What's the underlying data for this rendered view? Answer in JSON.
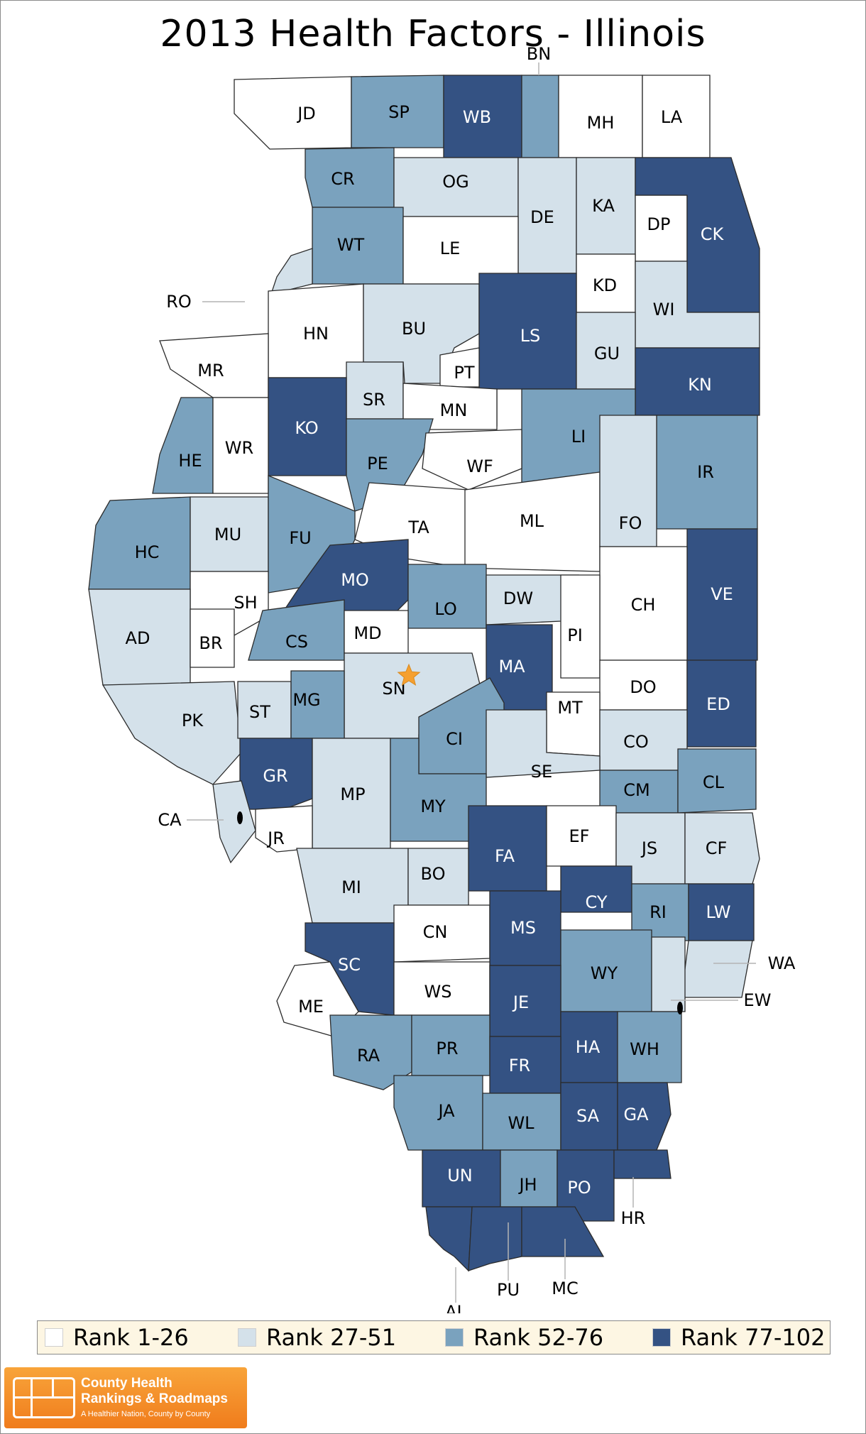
{
  "title": "2013 Health Factors - Illinois",
  "colors": {
    "Rank 1-26": "#ffffff",
    "Rank 27-51": "#d4e1ea",
    "Rank 52-76": "#7aa2be",
    "Rank 77-102": "#345283"
  },
  "legend": [
    {
      "label": "Rank 1-26",
      "color": "#ffffff"
    },
    {
      "label": "Rank 27-51",
      "color": "#d4e1ea"
    },
    {
      "label": "Rank 52-76",
      "color": "#7aa2be"
    },
    {
      "label": "Rank 77-102",
      "color": "#345283"
    }
  ],
  "highlight_marker": {
    "county": "SN",
    "symbol": "star",
    "color": "#f5a030"
  },
  "counties": [
    {
      "code": "JD",
      "rank_group": "Rank 1-26"
    },
    {
      "code": "SP",
      "rank_group": "Rank 52-76"
    },
    {
      "code": "WB",
      "rank_group": "Rank 77-102"
    },
    {
      "code": "BN",
      "rank_group": "Rank 52-76"
    },
    {
      "code": "MH",
      "rank_group": "Rank 1-26"
    },
    {
      "code": "LA",
      "rank_group": "Rank 1-26"
    },
    {
      "code": "CR",
      "rank_group": "Rank 52-76"
    },
    {
      "code": "OG",
      "rank_group": "Rank 27-51"
    },
    {
      "code": "DE",
      "rank_group": "Rank 27-51"
    },
    {
      "code": "KA",
      "rank_group": "Rank 27-51"
    },
    {
      "code": "DP",
      "rank_group": "Rank 1-26"
    },
    {
      "code": "CK",
      "rank_group": "Rank 77-102"
    },
    {
      "code": "WT",
      "rank_group": "Rank 52-76"
    },
    {
      "code": "LE",
      "rank_group": "Rank 1-26"
    },
    {
      "code": "RO",
      "rank_group": "Rank 27-51"
    },
    {
      "code": "KD",
      "rank_group": "Rank 1-26"
    },
    {
      "code": "WI",
      "rank_group": "Rank 27-51"
    },
    {
      "code": "HN",
      "rank_group": "Rank 1-26"
    },
    {
      "code": "BU",
      "rank_group": "Rank 27-51"
    },
    {
      "code": "LS",
      "rank_group": "Rank 77-102"
    },
    {
      "code": "GU",
      "rank_group": "Rank 27-51"
    },
    {
      "code": "MR",
      "rank_group": "Rank 1-26"
    },
    {
      "code": "PT",
      "rank_group": "Rank 1-26"
    },
    {
      "code": "KN",
      "rank_group": "Rank 77-102"
    },
    {
      "code": "SR",
      "rank_group": "Rank 27-51"
    },
    {
      "code": "MN",
      "rank_group": "Rank 1-26"
    },
    {
      "code": "KO",
      "rank_group": "Rank 77-102"
    },
    {
      "code": "HE",
      "rank_group": "Rank 52-76"
    },
    {
      "code": "WR",
      "rank_group": "Rank 1-26"
    },
    {
      "code": "LI",
      "rank_group": "Rank 52-76"
    },
    {
      "code": "PE",
      "rank_group": "Rank 52-76"
    },
    {
      "code": "WF",
      "rank_group": "Rank 1-26"
    },
    {
      "code": "IR",
      "rank_group": "Rank 52-76"
    },
    {
      "code": "HC",
      "rank_group": "Rank 52-76"
    },
    {
      "code": "MU",
      "rank_group": "Rank 27-51"
    },
    {
      "code": "FU",
      "rank_group": "Rank 52-76"
    },
    {
      "code": "TA",
      "rank_group": "Rank 1-26"
    },
    {
      "code": "ML",
      "rank_group": "Rank 1-26"
    },
    {
      "code": "FO",
      "rank_group": "Rank 27-51"
    },
    {
      "code": "MO",
      "rank_group": "Rank 77-102"
    },
    {
      "code": "VE",
      "rank_group": "Rank 77-102"
    },
    {
      "code": "SH",
      "rank_group": "Rank 1-26"
    },
    {
      "code": "LO",
      "rank_group": "Rank 52-76"
    },
    {
      "code": "DW",
      "rank_group": "Rank 27-51"
    },
    {
      "code": "CH",
      "rank_group": "Rank 1-26"
    },
    {
      "code": "AD",
      "rank_group": "Rank 27-51"
    },
    {
      "code": "BR",
      "rank_group": "Rank 1-26"
    },
    {
      "code": "CS",
      "rank_group": "Rank 52-76"
    },
    {
      "code": "MD",
      "rank_group": "Rank 1-26"
    },
    {
      "code": "PI",
      "rank_group": "Rank 1-26"
    },
    {
      "code": "MA",
      "rank_group": "Rank 77-102"
    },
    {
      "code": "SN",
      "rank_group": "Rank 27-51"
    },
    {
      "code": "DO",
      "rank_group": "Rank 1-26"
    },
    {
      "code": "ED",
      "rank_group": "Rank 77-102"
    },
    {
      "code": "PK",
      "rank_group": "Rank 27-51"
    },
    {
      "code": "ST",
      "rank_group": "Rank 27-51"
    },
    {
      "code": "MG",
      "rank_group": "Rank 52-76"
    },
    {
      "code": "MT",
      "rank_group": "Rank 1-26"
    },
    {
      "code": "CI",
      "rank_group": "Rank 52-76"
    },
    {
      "code": "CO",
      "rank_group": "Rank 27-51"
    },
    {
      "code": "SE",
      "rank_group": "Rank 27-51"
    },
    {
      "code": "GR",
      "rank_group": "Rank 77-102"
    },
    {
      "code": "MP",
      "rank_group": "Rank 27-51"
    },
    {
      "code": "CM",
      "rank_group": "Rank 52-76"
    },
    {
      "code": "CL",
      "rank_group": "Rank 52-76"
    },
    {
      "code": "MY",
      "rank_group": "Rank 52-76"
    },
    {
      "code": "CA",
      "rank_group": "Rank 27-51"
    },
    {
      "code": "JR",
      "rank_group": "Rank 1-26"
    },
    {
      "code": "FA",
      "rank_group": "Rank 77-102"
    },
    {
      "code": "EF",
      "rank_group": "Rank 1-26"
    },
    {
      "code": "JS",
      "rank_group": "Rank 27-51"
    },
    {
      "code": "CF",
      "rank_group": "Rank 27-51"
    },
    {
      "code": "MI",
      "rank_group": "Rank 27-51"
    },
    {
      "code": "BO",
      "rank_group": "Rank 27-51"
    },
    {
      "code": "CY",
      "rank_group": "Rank 77-102"
    },
    {
      "code": "RI",
      "rank_group": "Rank 52-76"
    },
    {
      "code": "LW",
      "rank_group": "Rank 77-102"
    },
    {
      "code": "CN",
      "rank_group": "Rank 1-26"
    },
    {
      "code": "MS",
      "rank_group": "Rank 77-102"
    },
    {
      "code": "SC",
      "rank_group": "Rank 77-102"
    },
    {
      "code": "WA",
      "rank_group": "Rank 27-51"
    },
    {
      "code": "WY",
      "rank_group": "Rank 52-76"
    },
    {
      "code": "WS",
      "rank_group": "Rank 1-26"
    },
    {
      "code": "ME",
      "rank_group": "Rank 1-26"
    },
    {
      "code": "JE",
      "rank_group": "Rank 77-102"
    },
    {
      "code": "EW",
      "rank_group": "Rank 27-51"
    },
    {
      "code": "RA",
      "rank_group": "Rank 52-76"
    },
    {
      "code": "PR",
      "rank_group": "Rank 52-76"
    },
    {
      "code": "HA",
      "rank_group": "Rank 77-102"
    },
    {
      "code": "WH",
      "rank_group": "Rank 52-76"
    },
    {
      "code": "FR",
      "rank_group": "Rank 77-102"
    },
    {
      "code": "JA",
      "rank_group": "Rank 52-76"
    },
    {
      "code": "WL",
      "rank_group": "Rank 52-76"
    },
    {
      "code": "SA",
      "rank_group": "Rank 77-102"
    },
    {
      "code": "GA",
      "rank_group": "Rank 77-102"
    },
    {
      "code": "UN",
      "rank_group": "Rank 77-102"
    },
    {
      "code": "JH",
      "rank_group": "Rank 52-76"
    },
    {
      "code": "PO",
      "rank_group": "Rank 77-102"
    },
    {
      "code": "HR",
      "rank_group": "Rank 77-102"
    },
    {
      "code": "AL",
      "rank_group": "Rank 77-102"
    },
    {
      "code": "PU",
      "rank_group": "Rank 77-102"
    },
    {
      "code": "MC",
      "rank_group": "Rank 77-102"
    }
  ],
  "logo": {
    "name_line1": "County Health",
    "name_line2": "Rankings & Roadmaps",
    "tagline": "A Healthier Nation, County by County"
  }
}
